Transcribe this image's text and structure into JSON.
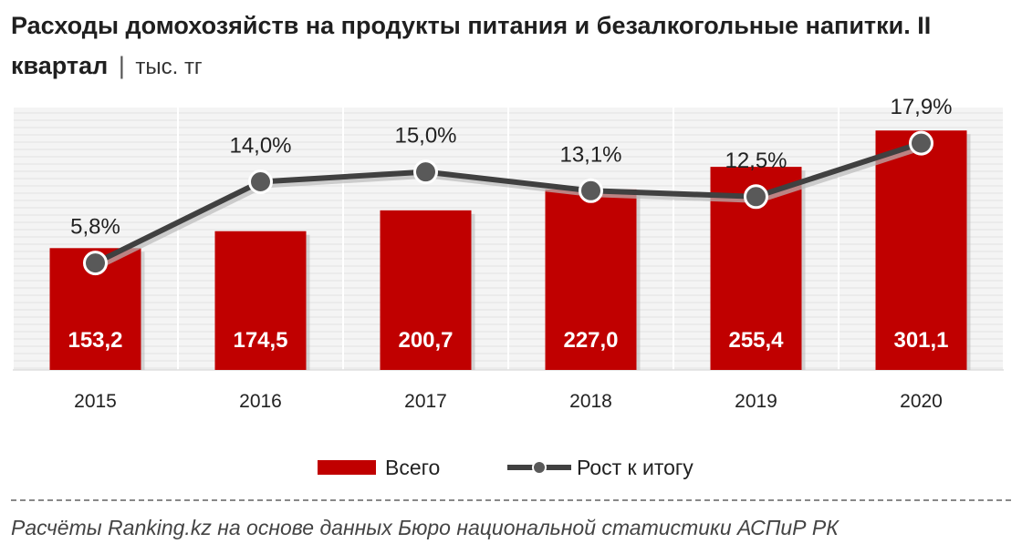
{
  "title": {
    "main": "Расходы домохозяйств на продукты питания и безалкогольные напитки. II квартал",
    "separator": "|",
    "unit": "тыс. тг"
  },
  "chart_data": {
    "type": "bar",
    "categories": [
      "2015",
      "2016",
      "2017",
      "2018",
      "2019",
      "2020"
    ],
    "series": [
      {
        "name": "Всего",
        "kind": "bar",
        "color": "#c00000",
        "values": [
          153.2,
          174.5,
          200.7,
          227.0,
          255.4,
          301.1
        ],
        "labels": [
          "153,2",
          "174,5",
          "200,7",
          "227,0",
          "255,4",
          "301,1"
        ]
      },
      {
        "name": "Рост к итогу",
        "kind": "line",
        "color": "#404040",
        "values": [
          5.8,
          14.0,
          15.0,
          13.1,
          12.5,
          17.9
        ],
        "labels": [
          "5,8%",
          "14,0%",
          "15,0%",
          "13,1%",
          "12,5%",
          "17,9%"
        ]
      }
    ],
    "bar_ylim": [
      0,
      330
    ],
    "line_ylim": [
      -5,
      21.5
    ],
    "legend_position": "bottom"
  },
  "source": "Расчёты Ranking.kz на основе данных  Бюро национальной  статистики АСПиР РК"
}
